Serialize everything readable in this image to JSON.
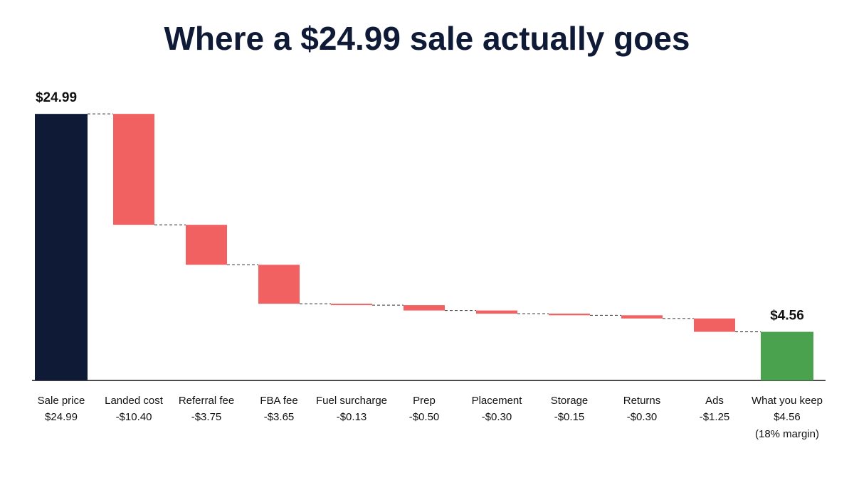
{
  "chart_data": {
    "type": "waterfall",
    "title": "Where a $24.99 sale actually goes",
    "categories": [
      "Sale price",
      "Landed cost",
      "Referral fee",
      "FBA fee",
      "Fuel surcharge",
      "Prep",
      "Placement",
      "Storage",
      "Returns",
      "Ads",
      "What you keep"
    ],
    "values": [
      24.99,
      -10.4,
      -3.75,
      -3.65,
      -0.13,
      -0.5,
      -0.3,
      -0.15,
      -0.3,
      -1.25,
      4.56
    ],
    "value_labels": [
      "$24.99",
      "-$10.40",
      "-$3.75",
      "-$3.65",
      "-$0.13",
      "-$0.50",
      "-$0.30",
      "-$0.15",
      "-$0.30",
      "-$1.25",
      "$4.56"
    ],
    "measures": [
      "absolute",
      "relative",
      "relative",
      "relative",
      "relative",
      "relative",
      "relative",
      "relative",
      "relative",
      "relative",
      "total"
    ],
    "colors": {
      "absolute": "#0f1a36",
      "relative": "#f26161",
      "total": "#4aa24f"
    },
    "annotation": "(18% margin)",
    "ylim": [
      0,
      25
    ]
  }
}
